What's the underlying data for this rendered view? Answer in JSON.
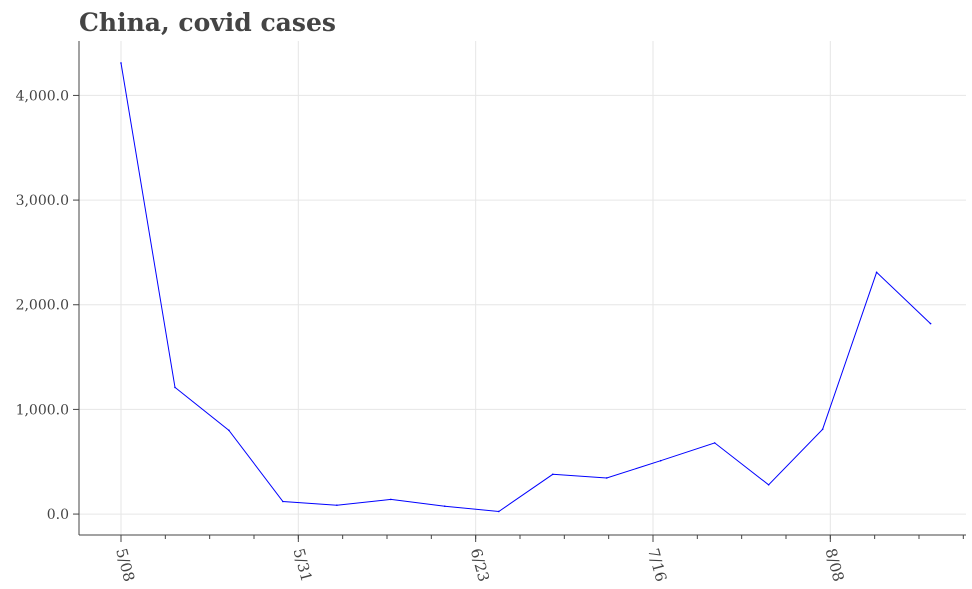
{
  "chart_data": {
    "type": "line",
    "title": "China, covid cases",
    "xlabel": "",
    "ylabel": "",
    "x_ticks": [
      "5/08",
      "5/31",
      "6/23",
      "7/16",
      "8/08"
    ],
    "y_ticks": [
      "0.0",
      "1,000.0",
      "2,000.0",
      "3,000.0",
      "4,000.0"
    ],
    "ylim": [
      -200,
      4520
    ],
    "grid": true,
    "legend": "none",
    "series": [
      {
        "color": "#0000ff",
        "x": [
          "2022-05-08",
          "2022-05-15",
          "2022-05-22",
          "2022-05-29",
          "2022-06-05",
          "2022-06-12",
          "2022-06-19",
          "2022-06-26",
          "2022-07-03",
          "2022-07-10",
          "2022-07-17",
          "2022-07-24",
          "2022-07-31",
          "2022-08-07",
          "2022-08-14",
          "2022-08-21"
        ],
        "values": [
          4310,
          1210,
          800,
          120,
          85,
          140,
          75,
          25,
          380,
          345,
          510,
          680,
          280,
          810,
          2310,
          1820
        ]
      }
    ]
  }
}
